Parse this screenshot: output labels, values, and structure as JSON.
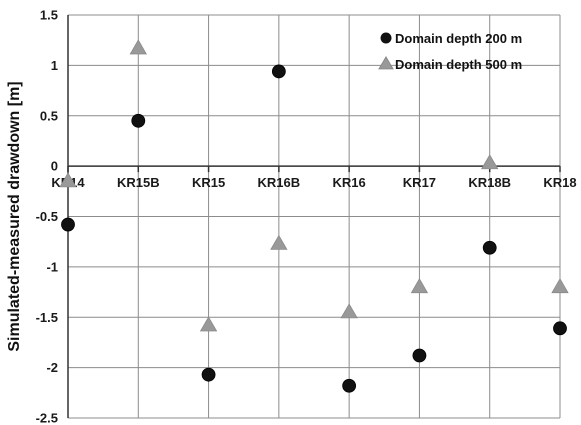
{
  "chart_data": {
    "type": "scatter",
    "categories": [
      "KR14",
      "KR15B",
      "KR15",
      "KR16B",
      "KR16",
      "KR17",
      "KR18B",
      "KR18"
    ],
    "series": [
      {
        "name": "Domain depth 200 m",
        "marker": "circle",
        "color": "#111111",
        "values": [
          -0.58,
          0.45,
          -2.07,
          0.94,
          -2.18,
          -1.88,
          -0.81,
          -1.61
        ]
      },
      {
        "name": "Domain depth 500 m",
        "marker": "triangle",
        "color": "#999999",
        "values": [
          -0.15,
          1.17,
          -1.58,
          -0.77,
          -1.45,
          -1.2,
          0.03,
          -1.2
        ]
      }
    ],
    "ylabel": "Simulated-measured drawdown [m]",
    "xlabel": "",
    "ylim": [
      -2.5,
      1.5
    ],
    "yticks": [
      -2.5,
      -2,
      -1.5,
      -1,
      -0.5,
      0,
      0.5,
      1,
      1.5
    ],
    "grid": true,
    "legend_position": "top-right"
  }
}
